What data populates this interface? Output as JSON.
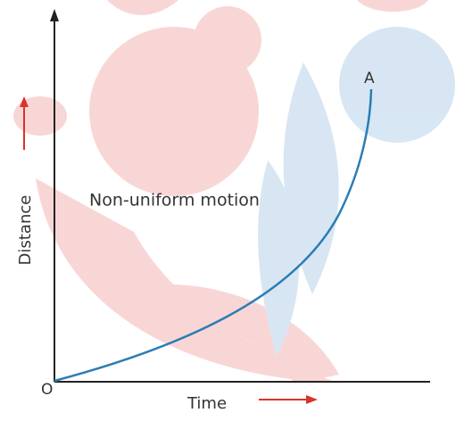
{
  "graph": {
    "origin_label": "O",
    "end_label": "A",
    "curve_label": "Non-uniform motion",
    "y_axis_label": "Distance",
    "x_axis_label": "Time"
  }
}
